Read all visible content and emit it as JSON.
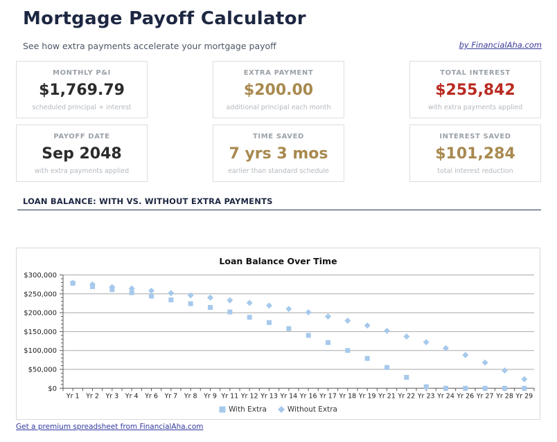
{
  "page": {
    "title": "Mortgage Payoff Calculator",
    "subtitle": "See how extra payments accelerate your mortgage payoff",
    "byline": "by FinancialAha.com",
    "footer_link": "Get a premium spreadsheet from FinancialAha.com"
  },
  "section": {
    "heading": "LOAN BALANCE: WITH VS. WITHOUT EXTRA PAYMENTS"
  },
  "stats": [
    {
      "label": "MONTHLY P&I",
      "value": "$1,769.79",
      "note": "scheduled principal + interest",
      "color": "dark"
    },
    {
      "label": "EXTRA PAYMENT",
      "value": "$200.00",
      "note": "additional principal each month",
      "color": "gold"
    },
    {
      "label": "TOTAL INTEREST",
      "value": "$255,842",
      "note": "with extra payments applied",
      "color": "red"
    },
    {
      "label": "PAYOFF DATE",
      "value": "Sep 2048",
      "note": "with extra payments applied",
      "color": "dark"
    },
    {
      "label": "TIME SAVED",
      "value": "7 yrs 3 mos",
      "note": "earlier than standard schedule",
      "color": "gold"
    },
    {
      "label": "INTEREST SAVED",
      "value": "$101,284",
      "note": "total interest reduction",
      "color": "gold"
    }
  ],
  "chart_data": {
    "type": "scatter",
    "title": "Loan Balance Over Time",
    "categories": [
      "Yr 1",
      "Yr 2",
      "Yr 3",
      "Yr 4",
      "Yr 6",
      "Yr 7",
      "Yr 8",
      "Yr 9",
      "Yr 11",
      "Yr 12",
      "Yr 13",
      "Yr 14",
      "Yr 16",
      "Yr 17",
      "Yr 18",
      "Yr 19",
      "Yr 21",
      "Yr 22",
      "Yr 23",
      "Yr 24",
      "Yr 26",
      "Yr 27",
      "Yr 28",
      "Yr 29"
    ],
    "series": [
      {
        "name": "With Extra",
        "marker": "square",
        "values": [
          278000,
          269000,
          261000,
          253000,
          244000,
          234000,
          224000,
          214000,
          202000,
          188000,
          174000,
          158000,
          140000,
          121000,
          100000,
          79000,
          55000,
          29000,
          4000,
          0,
          0,
          0,
          0,
          0
        ]
      },
      {
        "name": "Without Extra",
        "marker": "diamond",
        "values": [
          279000,
          275000,
          268000,
          264000,
          258000,
          252000,
          246000,
          240000,
          233000,
          226000,
          219000,
          210000,
          201000,
          190000,
          179000,
          166000,
          152000,
          137000,
          122000,
          106000,
          88000,
          68000,
          47000,
          24000
        ]
      }
    ],
    "xlabel": "",
    "ylabel": "",
    "ylim": [
      0,
      300000
    ],
    "ytick_interval": 50000,
    "y_minor_interval": 10000,
    "ytick_format": "$#,##0",
    "grid": true,
    "legend_position": "bottom",
    "marker_color": "#a6c9ec",
    "gridline_color": "#a8a8a8",
    "axis_color": "#595959"
  }
}
